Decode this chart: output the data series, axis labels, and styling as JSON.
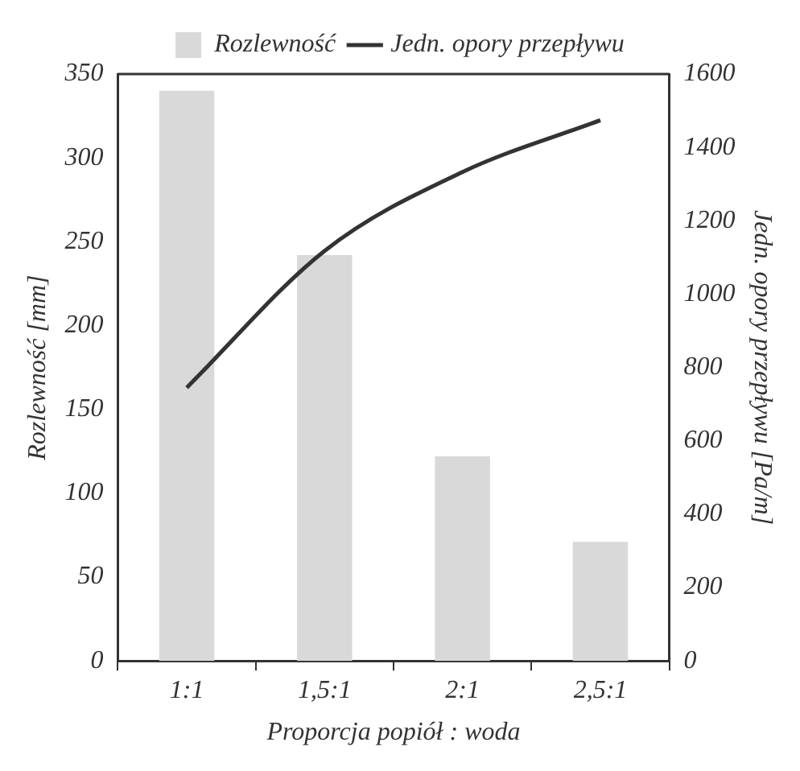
{
  "chart_data": {
    "type": "bar",
    "xlabel": "Proporcja popiół : woda",
    "ylabel": "Rozlewność [mm]",
    "y2label": "Jedn. opory przepływu [Pa/m]",
    "categories": [
      "1:1",
      "1,5:1",
      "2:1",
      "2,5:1"
    ],
    "series": [
      {
        "name": "Rozlewność",
        "color": "#d9d9d9",
        "values": [
          340,
          242,
          122,
          71
        ]
      },
      {
        "name": "Jedn. opory przepływu",
        "type": "line",
        "axis": "y2",
        "color": "#333333",
        "values": [
          745,
          1118,
          1333,
          1474
        ]
      }
    ],
    "ylim": [
      0,
      350
    ],
    "yticks": [
      0,
      50,
      100,
      150,
      200,
      250,
      300,
      350
    ],
    "y2lim": [
      0,
      1600
    ],
    "y2ticks": [
      0,
      200,
      400,
      600,
      800,
      1000,
      1200,
      1400,
      1600
    ],
    "grid": false,
    "legend": "top",
    "marker": "none",
    "line_style": "solid"
  }
}
